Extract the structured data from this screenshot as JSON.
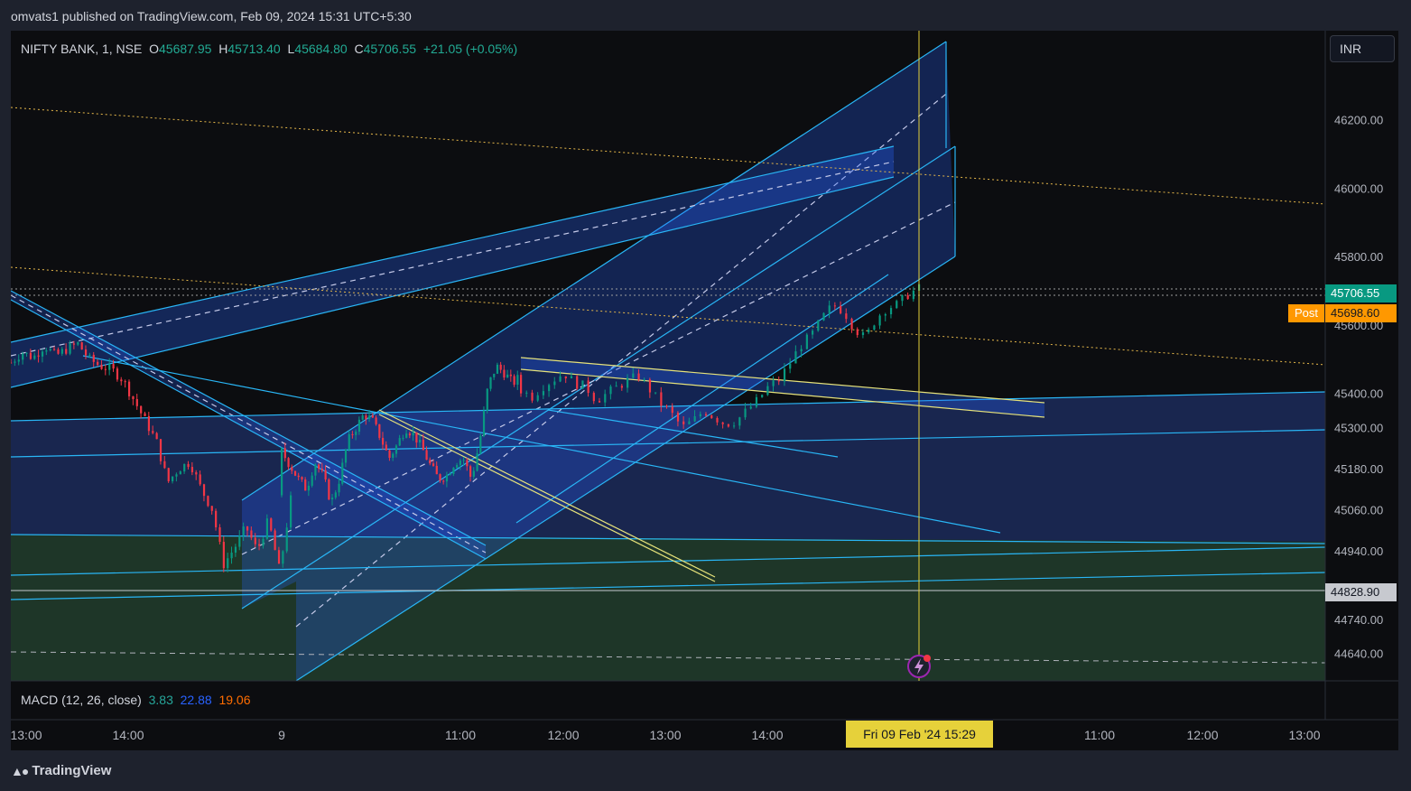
{
  "header": {
    "published": "omvats1 published on TradingView.com, Feb 09, 2024 15:31 UTC+5:30"
  },
  "legend": {
    "symbol": "NIFTY BANK, 1, NSE",
    "o_label": "O",
    "o": "45687.95",
    "h_label": "H",
    "h": "45713.40",
    "l_label": "L",
    "l": "45684.80",
    "c_label": "C",
    "c": "45706.55",
    "change": "+21.05 (+0.05%)"
  },
  "currency": "INR",
  "badges": {
    "last": "45706.55",
    "post_label": "Post",
    "post": "45698.60",
    "level": "44828.90"
  },
  "macd": {
    "label": "MACD (12, 26, close)",
    "v1": "3.83",
    "v2": "22.88",
    "v3": "19.06"
  },
  "cursor_time": "Fri 09 Feb '24   15:29",
  "footer": {
    "logo_text": "TradingView",
    "logo_icon": "tradingview-logo-icon"
  },
  "colors": {
    "up": "#089981",
    "down": "#f23645",
    "channel": "#29b6f6",
    "channel_fill": "#2962ff",
    "dotted": "#e6b84a",
    "yellow_line": "#e6e27a"
  },
  "chart_data": {
    "type": "candlestick",
    "ylim": [
      44560,
      46460
    ],
    "y_ticks": [
      "46200.00",
      "46000.00",
      "45800.00",
      "45600.00",
      "45400.00",
      "45300.00",
      "45180.00",
      "45060.00",
      "44940.00",
      "44740.00",
      "44640.00"
    ],
    "y_tick_values": [
      46200,
      46000,
      45800,
      45600,
      45400,
      45300,
      45180,
      45060,
      44940,
      44740,
      44640
    ],
    "x_ticks": [
      "13:00",
      "14:00",
      "9",
      "11:00",
      "12:00",
      "13:00",
      "14:00",
      "11:00",
      "12:00",
      "13:00"
    ],
    "price_path": [
      [
        45490,
        45520,
        45505,
        45540,
        45510,
        45530,
        45545,
        45500,
        45480,
        45470,
        45440,
        45380,
        45320,
        45260,
        45140,
        45180,
        45200,
        45120,
        45060,
        44900,
        44950,
        45010,
        44940,
        45030,
        44880,
        45090
      ],
      [
        45230,
        45190,
        45150,
        45120,
        45200,
        45160,
        45080,
        45150,
        45260,
        45300,
        45340,
        45320,
        45270,
        45210,
        45250,
        45300,
        45280,
        45240,
        45190,
        45150,
        45160,
        45200,
        45210,
        45150,
        45260,
        45420,
        45480,
        45460,
        45430,
        45450
      ],
      [
        45410,
        45390,
        45420,
        45440,
        45460,
        45430,
        45420,
        45380,
        45400,
        45420,
        45440,
        45450,
        45410,
        45370,
        45340,
        45300,
        45320,
        45350,
        45330,
        45310,
        45320,
        45350,
        45380,
        45420,
        45440,
        45490,
        45540,
        45570,
        45620,
        45660,
        45640,
        45590,
        45560,
        45620,
        45650,
        45660,
        45690,
        45706.55
      ]
    ]
  }
}
